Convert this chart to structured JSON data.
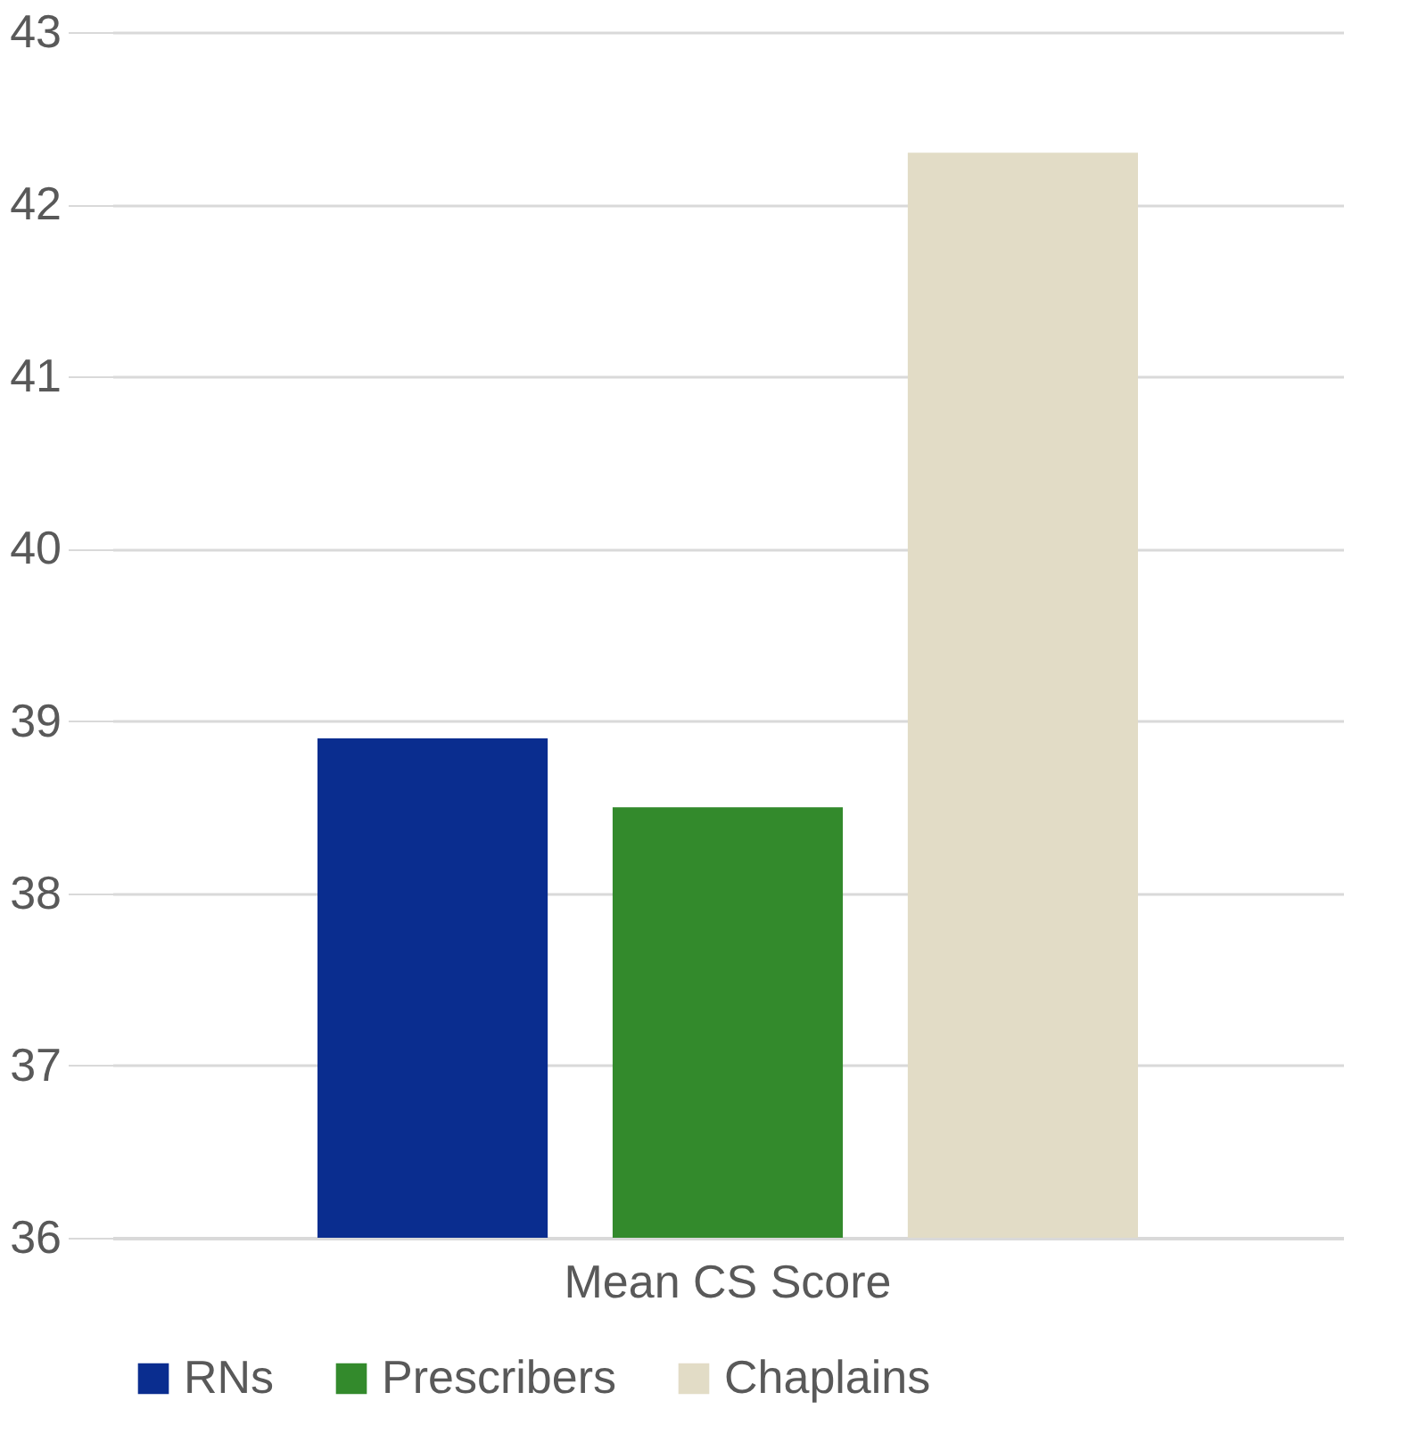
{
  "chart_data": {
    "type": "bar",
    "categories": [
      "Mean CS Score"
    ],
    "series": [
      {
        "name": "RNs",
        "color": "#0a2d8f",
        "values": [
          38.9
        ]
      },
      {
        "name": "Prescribers",
        "color": "#338a2c",
        "values": [
          38.5
        ]
      },
      {
        "name": "Chaplains",
        "color": "#e2dcc6",
        "values": [
          42.3
        ]
      }
    ],
    "ylim": [
      36,
      43
    ],
    "yticks": [
      36,
      37,
      38,
      39,
      40,
      41,
      42,
      43
    ],
    "grid": "y",
    "legend": "bottom"
  }
}
